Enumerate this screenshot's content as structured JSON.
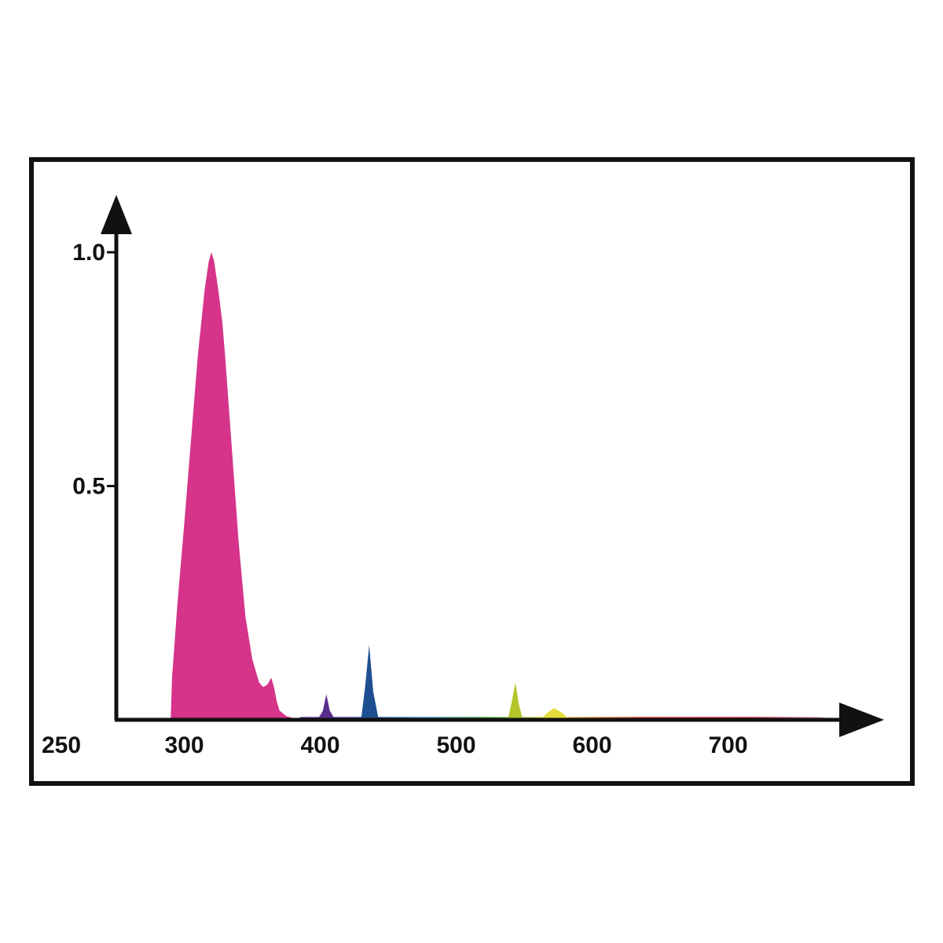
{
  "chart_data": {
    "type": "area",
    "title": "",
    "xlabel": "",
    "ylabel": "",
    "xlim": [
      250,
      800
    ],
    "ylim": [
      0,
      1.0
    ],
    "x_ticks": [
      {
        "value": 250,
        "label": "250"
      },
      {
        "value": 300,
        "label": "300"
      },
      {
        "value": 400,
        "label": "400"
      },
      {
        "value": 500,
        "label": "500"
      },
      {
        "value": 600,
        "label": "600"
      },
      {
        "value": 700,
        "label": "700"
      }
    ],
    "y_ticks": [
      {
        "value": 0.5,
        "label": "0.5"
      },
      {
        "value": 1.0,
        "label": "1.0"
      }
    ],
    "series": [
      {
        "color": "#d6338a",
        "x": [
          290,
          291,
          295,
          300,
          305,
          310,
          315,
          318,
          320,
          322,
          325,
          328,
          330,
          335,
          340,
          345,
          350,
          355,
          358,
          361,
          364,
          366,
          368,
          370,
          375,
          380,
          385,
          390
        ],
        "y": [
          0,
          0.09,
          0.25,
          0.42,
          0.6,
          0.78,
          0.92,
          0.98,
          1.0,
          0.98,
          0.92,
          0.85,
          0.78,
          0.58,
          0.38,
          0.22,
          0.13,
          0.08,
          0.07,
          0.075,
          0.09,
          0.07,
          0.04,
          0.02,
          0.008,
          0.004,
          0.002,
          0
        ]
      },
      {
        "color": "#5a2c8c",
        "x": [
          398,
          402,
          404.5,
          407,
          411
        ],
        "y": [
          0,
          0.02,
          0.055,
          0.02,
          0
        ]
      },
      {
        "color": "#1f4f91",
        "x": [
          430,
          433,
          436,
          439,
          443
        ],
        "y": [
          0,
          0.07,
          0.16,
          0.06,
          0
        ]
      },
      {
        "color": "#b5c42a",
        "x": [
          538,
          541,
          543.5,
          546,
          549
        ],
        "y": [
          0,
          0.04,
          0.08,
          0.035,
          0
        ]
      },
      {
        "color": "#e4dc3a",
        "x": [
          562,
          567,
          572,
          578,
          583
        ],
        "y": [
          0,
          0.015,
          0.025,
          0.015,
          0
        ]
      }
    ],
    "spectrum_baseline": {
      "x_range": [
        380,
        780
      ],
      "y": 0.006,
      "stops": [
        {
          "x": 380,
          "color": "#6b2a8f"
        },
        {
          "x": 430,
          "color": "#2a3f9e"
        },
        {
          "x": 480,
          "color": "#2c8fc4"
        },
        {
          "x": 520,
          "color": "#3aa63d"
        },
        {
          "x": 560,
          "color": "#c8d02a"
        },
        {
          "x": 580,
          "color": "#f0c23a"
        },
        {
          "x": 600,
          "color": "#f08a2a"
        },
        {
          "x": 640,
          "color": "#e0262a"
        },
        {
          "x": 720,
          "color": "#c81e3a"
        },
        {
          "x": 780,
          "color": "#e8c8d0"
        }
      ]
    }
  },
  "colors": {
    "frame": "#111111",
    "axis": "#111111"
  }
}
